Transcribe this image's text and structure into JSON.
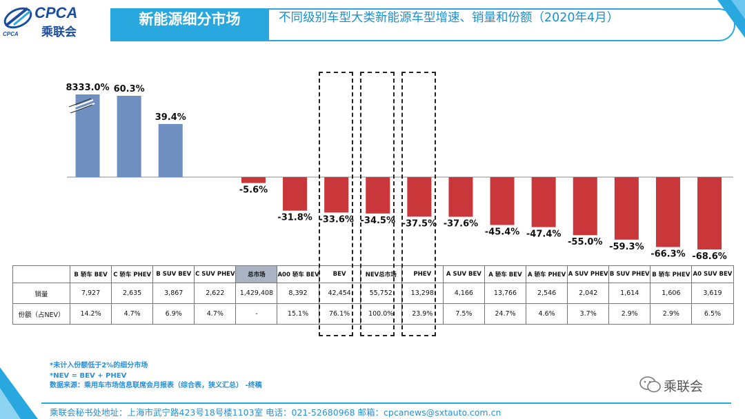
{
  "header": {
    "logo_text": "CPCA",
    "logo_cn": "乘联会",
    "logo_sub": "CPCA",
    "title": "新能源细分市场",
    "subtitle": "不同级别车型大类新能源车型增速、销量和份额（2020年4月）"
  },
  "colors": {
    "positive": "#6e8fbf",
    "negative": "#c9373b",
    "accent": "#29a8e0"
  },
  "chart_data": {
    "type": "bar",
    "title": "不同级别车型大类新能源车型增速、销量和份额（2020年4月）",
    "categories": [
      "B 轿车 BEV",
      "C 轿车 PHEV",
      "B SUV BEV",
      "C SUV PHEV",
      "总市场",
      "A00 轿车 BEV",
      "BEV",
      "NEV总市场",
      "PHEV",
      "A SUV BEV",
      "A 轿车 BEV",
      "A 轿车 PHEV",
      "A SUV PHEV",
      "B SUV PHEV",
      "B 轿车 PHEV",
      "A0 SUV BEV"
    ],
    "series": [
      {
        "name": "增速",
        "values": [
          8333.0,
          60.3,
          39.4,
          null,
          -5.6,
          -31.8,
          -33.6,
          -34.5,
          -37.5,
          -37.6,
          -45.4,
          -47.4,
          -55.0,
          -59.3,
          -66.3,
          -68.6
        ],
        "labels": [
          "8333.0%",
          "60.3%",
          "39.4%",
          "",
          "-5.6%",
          "-31.8%",
          "-33.6%",
          "-34.5%",
          "-37.5%",
          "-37.6%",
          "-45.4%",
          "-47.4%",
          "-55.0%",
          "-59.3%",
          "-66.3%",
          "-68.6%"
        ]
      }
    ],
    "axis_break_on": "B 轿车 BEV",
    "ylabel": "",
    "xlabel": ""
  },
  "table": {
    "headers": [
      "",
      "B 轿车 BEV",
      "C 轿车 PHEV",
      "B SUV BEV",
      "C SUV PHEV",
      "总市场",
      "A00 轿车 BEV",
      "BEV",
      "NEV总市场",
      "PHEV",
      "A SUV BEV",
      "A 轿车 BEV",
      "A 轿车 PHEV",
      "A SUV PHEV",
      "B SUV PHEV",
      "B 轿车 PHEV",
      "A0 SUV BEV"
    ],
    "sales_label": "销量",
    "sales": [
      "7,927",
      "2,635",
      "3,867",
      "2,622",
      "1,429,408",
      "8,392",
      "42,454",
      "55,752",
      "13,298",
      "4,166",
      "13,766",
      "2,546",
      "2,042",
      "1,614",
      "1,606",
      "3,619"
    ],
    "share_label": "份额（占NEV）",
    "shares": [
      "14.2%",
      "4.7%",
      "6.9%",
      "4.7%",
      "-",
      "15.1%",
      "76.1%",
      "100.0%",
      "23.9%",
      "7.5%",
      "24.7%",
      "4.6%",
      "3.7%",
      "2.9%",
      "2.9%",
      "6.5%"
    ]
  },
  "notes": {
    "line1": "*未计入份额低于2%的细分市场",
    "line2": "*NEV = BEV + PHEV",
    "line3": "数据来源：乘用车市场信息联席会月报表（综合表，狭义汇总） -终稿"
  },
  "wechat": "乘联会",
  "footer": "乘联会秘书处地址：上海市武宁路423号18号楼1103室   电话：021-52680968   邮箱：cpcanews@sxtauto.com.cn"
}
